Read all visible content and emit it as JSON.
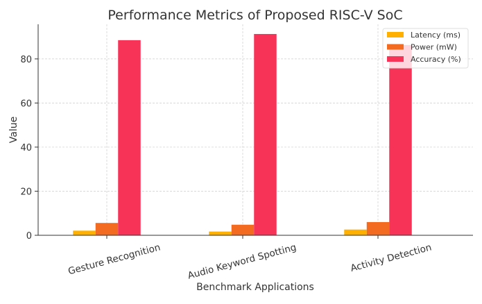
{
  "chart_data": {
    "type": "bar",
    "title": "Performance Metrics of Proposed RISC-V SoC",
    "xlabel": "Benchmark Applications",
    "ylabel": "Value",
    "categories": [
      "Gesture Recognition",
      "Audio Keyword Spotting",
      "Activity Detection"
    ],
    "series": [
      {
        "name": "Latency (ms)",
        "color": "#FFB000",
        "values": [
          2.1,
          1.7,
          2.6
        ]
      },
      {
        "name": "Power (mW)",
        "color": "#F26B21",
        "values": [
          5.6,
          4.8,
          6.0
        ]
      },
      {
        "name": "Accuracy (%)",
        "color": "#F73358",
        "values": [
          88.5,
          91.3,
          86.3
        ]
      }
    ],
    "ylim": [
      0,
      95.7
    ],
    "yticks": [
      "0",
      "20",
      "40",
      "60",
      "80"
    ],
    "grid": true,
    "legend": "top-right"
  }
}
